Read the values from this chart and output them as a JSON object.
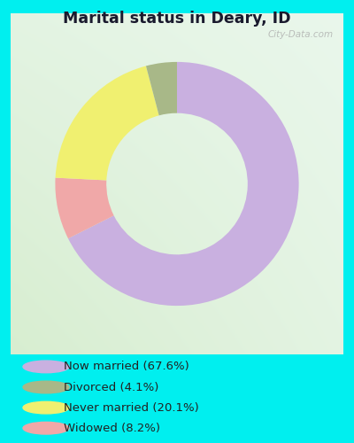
{
  "title": "Marital status in Deary, ID",
  "slices": [
    67.6,
    4.1,
    20.1,
    8.2
  ],
  "labels": [
    "Now married (67.6%)",
    "Divorced (4.1%)",
    "Never married (20.1%)",
    "Widowed (8.2%)"
  ],
  "colors": [
    "#c9b0e0",
    "#a8b888",
    "#f0f070",
    "#f0a8a8"
  ],
  "legend_colors": [
    "#c9b0e0",
    "#a8b888",
    "#f0f070",
    "#f0a8a8"
  ],
  "bg_color_outer": "#00efef",
  "chart_bg_topleft": "#e8f5f0",
  "chart_bg_bottomright": "#d0e8c0",
  "watermark": "City-Data.com",
  "donut_width": 0.42,
  "start_angle": 90
}
